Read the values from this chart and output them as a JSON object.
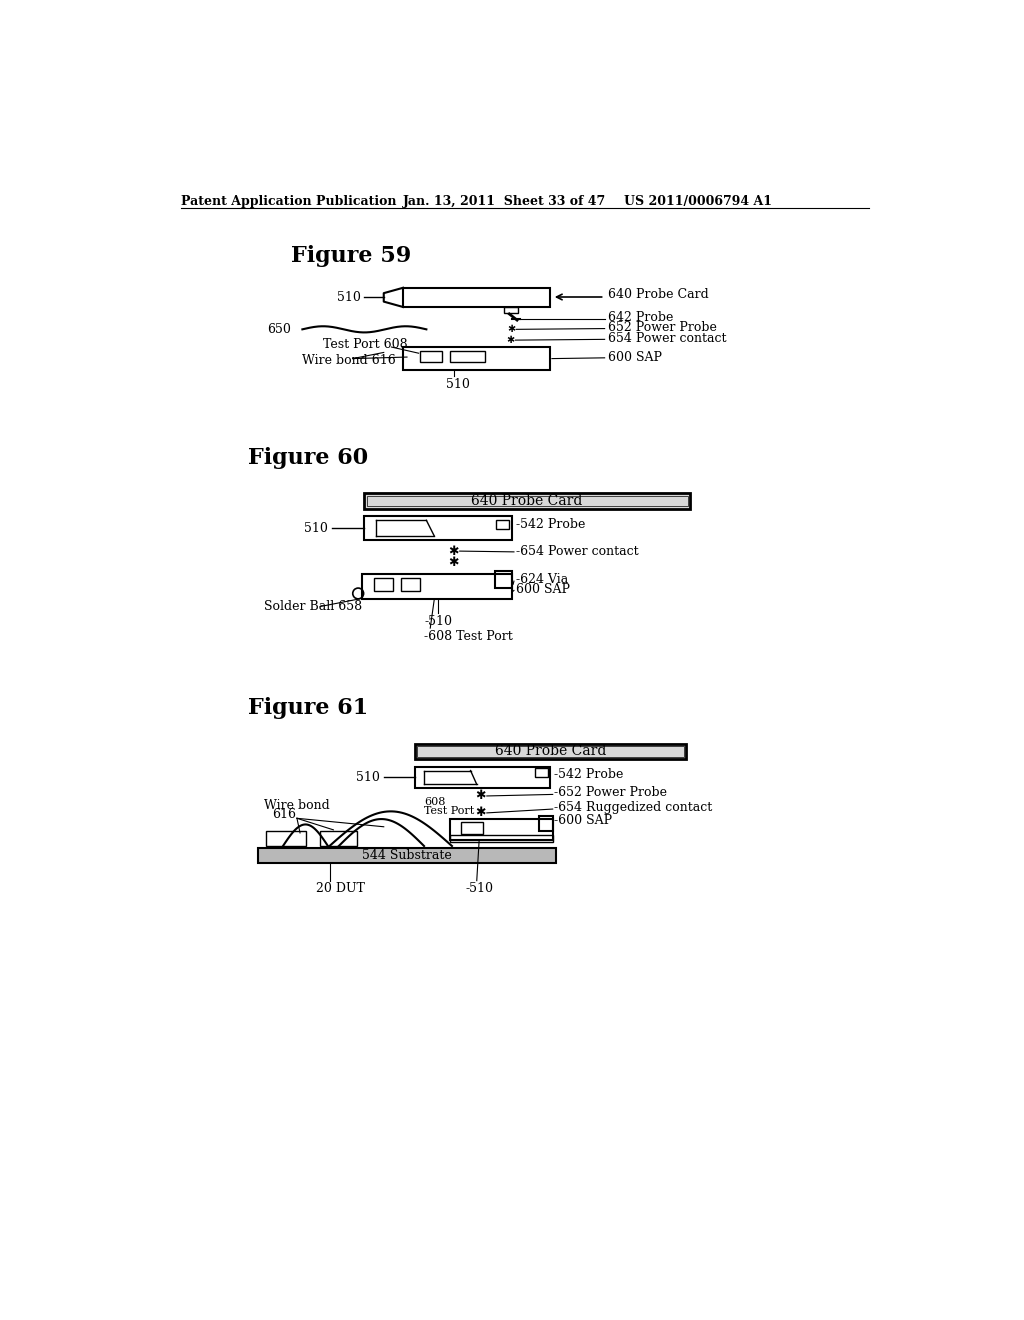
{
  "bg_color": "#ffffff",
  "header_left": "Patent Application Publication",
  "header_center": "Jan. 13, 2011  Sheet 33 of 47",
  "header_right": "US 2011/0006794 A1",
  "fig59_title": "Figure 59",
  "fig60_title": "Figure 60",
  "fig61_title": "Figure 61",
  "label_fontsize": 9,
  "header_fontsize": 9,
  "title_fontsize": 16
}
